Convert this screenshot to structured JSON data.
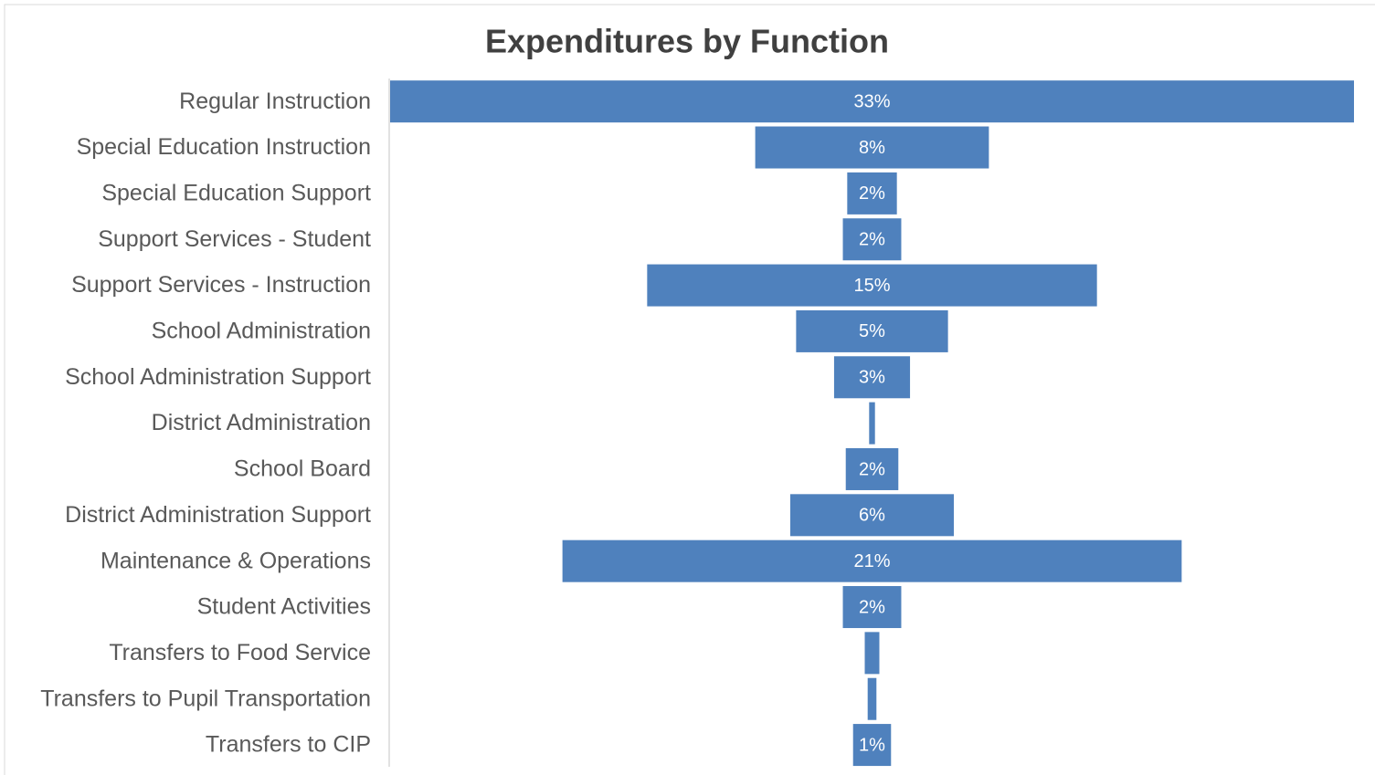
{
  "chart_data": {
    "type": "funnel",
    "title": "Expenditures by Function",
    "categories": [
      "Regular Instruction",
      "Special Education Instruction",
      "Special Education Support",
      "Support Services - Student",
      "Support Services - Instruction",
      "School Administration",
      "School Administration Support",
      "District Administration",
      "School Board",
      "District Administration Support",
      "Maintenance & Operations",
      "Student Activities",
      "Transfers to Food Service",
      "Transfers to Pupil Transportation",
      "Transfers to CIP"
    ],
    "values": [
      33,
      8.0,
      1.7,
      2.0,
      15.4,
      5.2,
      2.6,
      0.2,
      1.8,
      5.6,
      21.2,
      2.0,
      0.5,
      0.3,
      1.3
    ],
    "value_labels": [
      "33%",
      "8%",
      "2%",
      "2%",
      "15%",
      "5%",
      "3%",
      null,
      "2%",
      "6%",
      "21%",
      "2%",
      null,
      null,
      "1%"
    ],
    "color": "#4f81bd"
  }
}
